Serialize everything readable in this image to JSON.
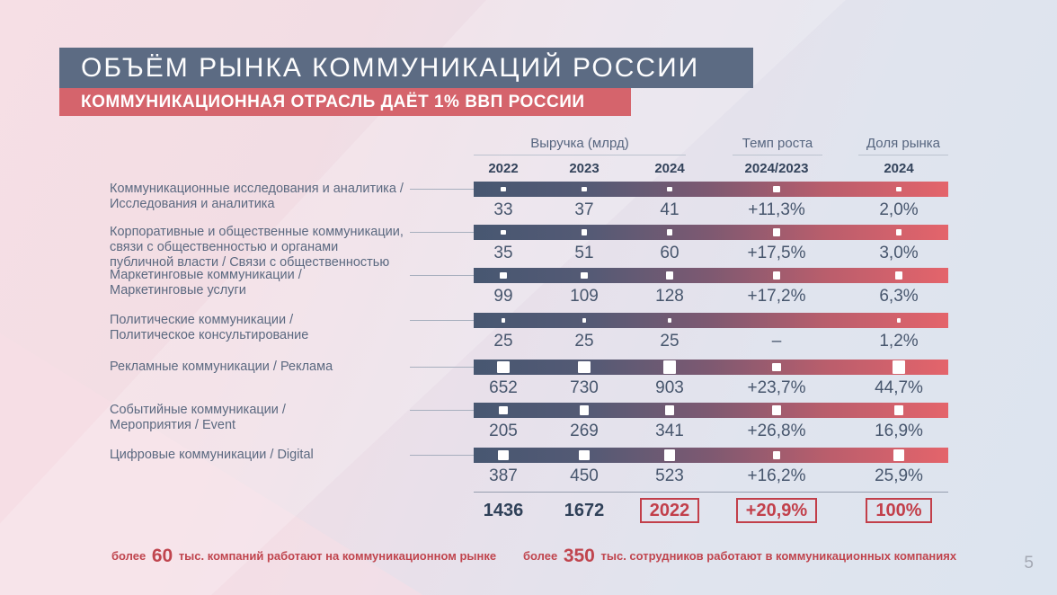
{
  "slide": {
    "title": "ОБЪЁМ РЫНКА КОММУНИКАЦИЙ РОССИИ",
    "subtitle": "КОММУНИКАЦИОННАЯ ОТРАСЛЬ ДАЁТ 1% ВВП РОССИИ",
    "page_number": "5"
  },
  "colors": {
    "title_bar": "#5c6b83",
    "subtitle_bar": "#d5646c",
    "accent_red": "#c23f4a",
    "bar_gradient_start": "#475771",
    "bar_gradient_end": "#e4646b"
  },
  "chart_data": {
    "type": "table",
    "title": "ОБЪЁМ РЫНКА КОММУНИКАЦИЙ РОССИИ",
    "subtitle": "КОММУНИКАЦИОННАЯ ОТРАСЛЬ ДАЁТ 1% ВВП РОССИИ",
    "column_groups": [
      {
        "label": "Выручка (млрд)",
        "columns": [
          "2022",
          "2023",
          "2024"
        ]
      },
      {
        "label": "Темп роста",
        "columns": [
          "2024/2023"
        ]
      },
      {
        "label": "Доля рынка",
        "columns": [
          "2024"
        ]
      }
    ],
    "rows": [
      {
        "label_lines": [
          "Коммуникационные исследования и аналитика /",
          "Исследования и аналитика"
        ],
        "revenue": [
          33,
          37,
          41
        ],
        "growth": "+11,3%",
        "share": "2,0%"
      },
      {
        "label_lines": [
          "Корпоративные и общественные коммуникации,",
          "связи с общественностью и органами",
          "публичной власти / Связи с общественностью"
        ],
        "revenue": [
          35,
          51,
          60
        ],
        "growth": "+17,5%",
        "share": "3,0%"
      },
      {
        "label_lines": [
          "Маркетинговые коммуникации /",
          "Маркетинговые услуги"
        ],
        "revenue": [
          99,
          109,
          128
        ],
        "growth": "+17,2%",
        "share": "6,3%"
      },
      {
        "label_lines": [
          "Политические коммуникации /",
          "Политическое консультирование"
        ],
        "revenue": [
          25,
          25,
          25
        ],
        "growth": "–",
        "share": "1,2%"
      },
      {
        "label_lines": [
          "Рекламные коммуникации / Реклама"
        ],
        "revenue": [
          652,
          730,
          903
        ],
        "growth": "+23,7%",
        "share": "44,7%"
      },
      {
        "label_lines": [
          "Событийные коммуникации /",
          "Мероприятия / Event"
        ],
        "revenue": [
          205,
          269,
          341
        ],
        "growth": "+26,8%",
        "share": "16,9%"
      },
      {
        "label_lines": [
          "Цифровые коммуникации / Digital"
        ],
        "revenue": [
          387,
          450,
          523
        ],
        "growth": "+16,2%",
        "share": "25,9%"
      }
    ],
    "totals": {
      "revenue": [
        "1436",
        "1672",
        "2022"
      ],
      "growth": "+20,9%",
      "share": "100%"
    },
    "grid": false,
    "legend_position": "none"
  },
  "notes": {
    "left": {
      "prefix": "более",
      "number": "60",
      "rest": "тыс. компаний работают на коммуникационном рынке"
    },
    "right": {
      "prefix": "более",
      "number": "350",
      "rest": "тыс. сотрудников работают в коммуникационных компаниях"
    }
  }
}
